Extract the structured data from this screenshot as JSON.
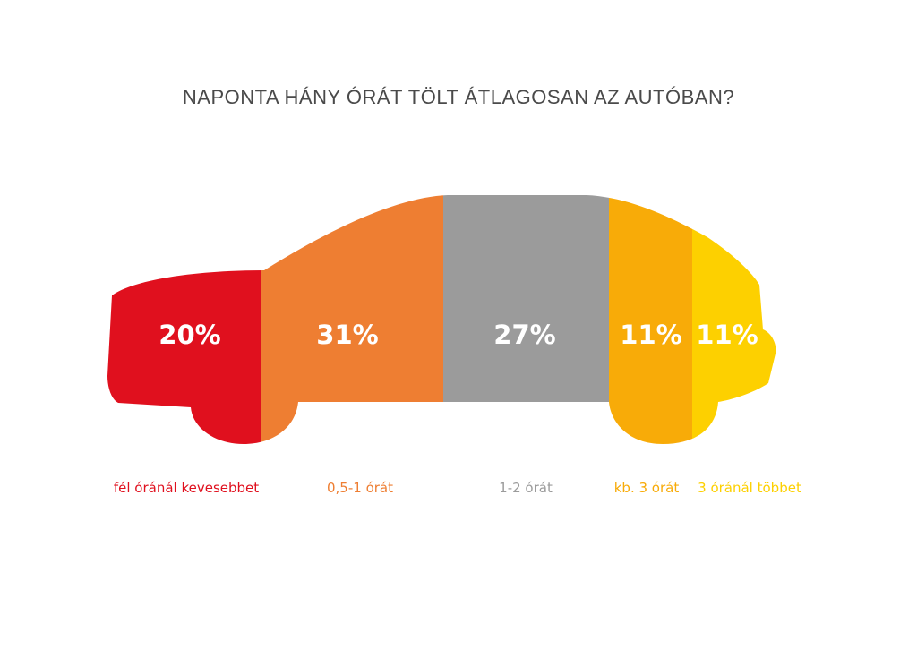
{
  "chart_data": {
    "type": "bar",
    "title": "NAPONTA HÁNY ÓRÁT TÖLT ÁTLAGOSAN AZ AUTÓBAN?",
    "unit": "%",
    "categories": [
      "fél óránál kevesebbet",
      "0,5-1 órát",
      "1-2 órát",
      "kb. 3 órát",
      "3 óránál többet"
    ],
    "values": [
      20,
      31,
      27,
      11,
      11
    ],
    "value_labels": [
      "20%",
      "31%",
      "27%",
      "11%",
      "11%"
    ],
    "colors": [
      "#e0101e",
      "#ee7e32",
      "#9b9b9b",
      "#f8ab08",
      "#fdd000"
    ]
  }
}
